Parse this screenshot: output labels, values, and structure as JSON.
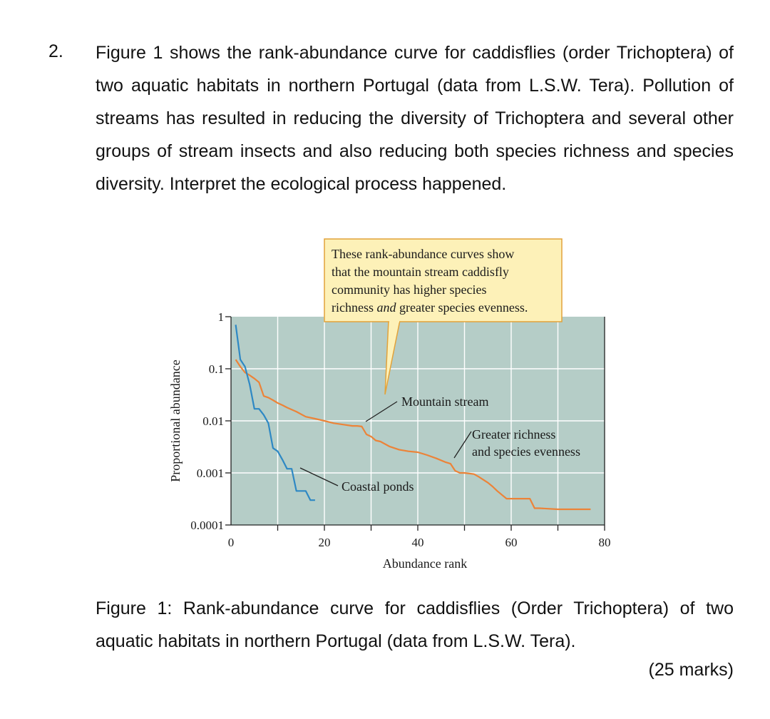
{
  "question": {
    "number": "2.",
    "text": "Figure 1 shows the rank-abundance curve for caddisflies (order Trichoptera) of two aquatic habitats in northern Portugal (data from L.S.W. Tera). Pollution of streams has resulted in reducing the diversity of Trichoptera and several other groups of stream insects and also reducing both species richness and species diversity. Interpret the ecological process happened."
  },
  "figure": {
    "callout_lines": [
      "These rank-abundance curves show",
      "that the mountain stream caddisfly",
      "community has higher species",
      "richness and greater species evenness."
    ],
    "annotations": {
      "mountain": "Mountain stream",
      "coastal": "Coastal ponds",
      "evenness_line1": "Greater richness",
      "evenness_line2": "and species evenness"
    },
    "colors": {
      "plot_background": "#b5cdc7",
      "gridline": "#ffffff",
      "callout_fill": "#fdf1b8",
      "callout_border": "#e2a23a",
      "mountain": "#ec8338",
      "coastal": "#2e88c4"
    }
  },
  "chart_data": {
    "type": "line",
    "xlabel": "Abundance rank",
    "ylabel": "Proportional abundance",
    "xlim": [
      0,
      80
    ],
    "ylim": [
      0.0001,
      1
    ],
    "yscale": "log",
    "grid": true,
    "x_ticks": [
      0,
      20,
      40,
      60,
      80
    ],
    "y_ticks": [
      1,
      0.1,
      0.01,
      0.001,
      0.0001
    ],
    "y_tick_labels": [
      "1",
      "0.1",
      "0.01",
      "0.001",
      "0.0001"
    ],
    "series": [
      {
        "name": "Mountain stream",
        "color": "#ec8338",
        "points": [
          [
            1,
            0.15
          ],
          [
            2,
            0.11
          ],
          [
            3,
            0.085
          ],
          [
            4,
            0.075
          ],
          [
            5,
            0.065
          ],
          [
            6,
            0.055
          ],
          [
            7,
            0.03
          ],
          [
            8,
            0.028
          ],
          [
            9,
            0.025
          ],
          [
            10,
            0.022
          ],
          [
            11,
            0.02
          ],
          [
            12,
            0.018
          ],
          [
            14,
            0.015
          ],
          [
            16,
            0.012
          ],
          [
            18,
            0.011
          ],
          [
            20,
            0.01
          ],
          [
            22,
            0.009
          ],
          [
            24,
            0.0085
          ],
          [
            26,
            0.008
          ],
          [
            27,
            0.008
          ],
          [
            28,
            0.0078
          ],
          [
            29,
            0.0055
          ],
          [
            30,
            0.005
          ],
          [
            31,
            0.0042
          ],
          [
            32,
            0.004
          ],
          [
            34,
            0.0032
          ],
          [
            36,
            0.0028
          ],
          [
            38,
            0.0026
          ],
          [
            40,
            0.0025
          ],
          [
            42,
            0.0022
          ],
          [
            44,
            0.0019
          ],
          [
            46,
            0.0016
          ],
          [
            47,
            0.0015
          ],
          [
            48,
            0.0011
          ],
          [
            49,
            0.001
          ],
          [
            50,
            0.001
          ],
          [
            52,
            0.00095
          ],
          [
            53,
            0.00085
          ],
          [
            55,
            0.00065
          ],
          [
            56,
            0.00055
          ],
          [
            57,
            0.00045
          ],
          [
            58,
            0.00038
          ],
          [
            59,
            0.00032
          ],
          [
            61,
            0.00032
          ],
          [
            62,
            0.00032
          ],
          [
            64,
            0.00032
          ],
          [
            65,
            0.00021
          ],
          [
            66,
            0.00021
          ],
          [
            70,
            0.0002
          ],
          [
            74,
            0.0002
          ],
          [
            77,
            0.0002
          ]
        ]
      },
      {
        "name": "Coastal ponds",
        "color": "#2e88c4",
        "points": [
          [
            1,
            0.7
          ],
          [
            2,
            0.15
          ],
          [
            3,
            0.11
          ],
          [
            4,
            0.05
          ],
          [
            5,
            0.017
          ],
          [
            6,
            0.017
          ],
          [
            7,
            0.013
          ],
          [
            8,
            0.009
          ],
          [
            9,
            0.003
          ],
          [
            10,
            0.0026
          ],
          [
            11,
            0.0018
          ],
          [
            12,
            0.0012
          ],
          [
            13,
            0.0012
          ],
          [
            14,
            0.00045
          ],
          [
            15,
            0.00045
          ],
          [
            16,
            0.00045
          ],
          [
            17,
            0.0003
          ],
          [
            18,
            0.0003
          ]
        ]
      }
    ]
  },
  "caption": "Figure 1: Rank-abundance curve for caddisflies (Order Trichoptera) of two aquatic habitats in northern Portugal (data from L.S.W. Tera).",
  "marks": "(25 marks)"
}
